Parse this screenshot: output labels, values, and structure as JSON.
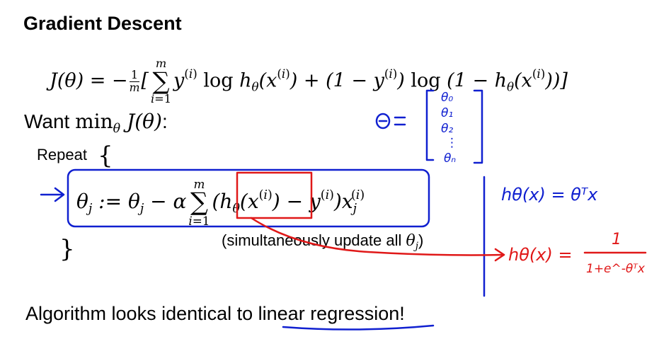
{
  "slide": {
    "title": "Gradient Descent",
    "want_label": "Want",
    "repeat_label": "Repeat",
    "simul_text": "(simultaneously update all",
    "simul_close": ")",
    "conclusion_prefix": "Algorithm looks identical to ",
    "conclusion_link": "linear regression",
    "conclusion_suffix": "!"
  },
  "annotations": {
    "theta_vector": [
      "θ₀",
      "θ₁",
      "θ₂",
      "⋮",
      "θₙ"
    ],
    "linear_hypothesis": "hθ(x) = θᵀx",
    "logistic_hypothesis": "hθ(x) =",
    "logistic_num": "1",
    "logistic_den": "1+e^-θᵀx"
  },
  "colors": {
    "text": "#000000",
    "ink_blue": "#1020d0",
    "ink_red": "#e01818"
  }
}
